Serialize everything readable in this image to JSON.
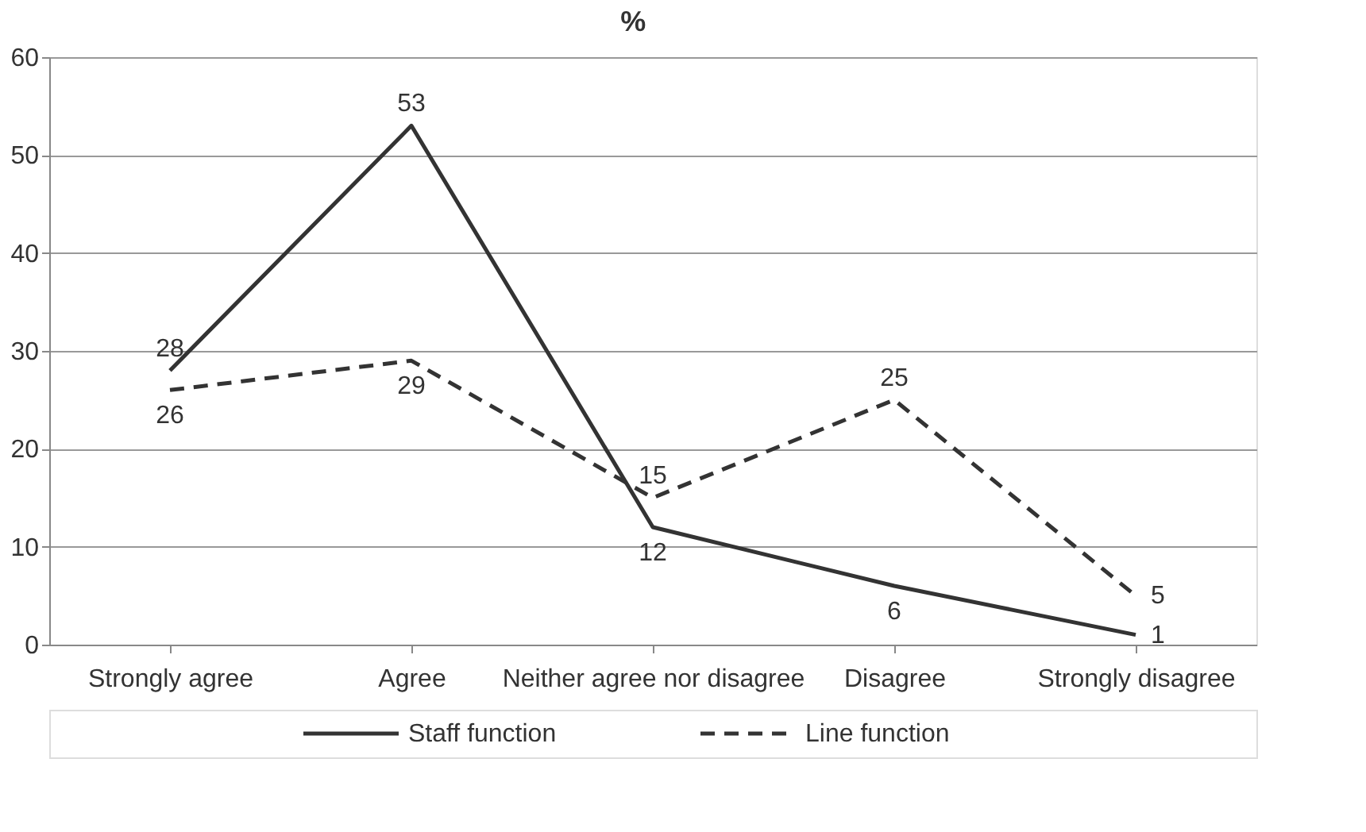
{
  "chart_data": {
    "type": "line",
    "title": "%",
    "categories": [
      "Strongly agree",
      "Agree",
      "Neither agree nor disagree",
      "Disagree",
      "Strongly disagree"
    ],
    "series": [
      {
        "name": "Staff function",
        "color": "#333333",
        "line_style": "solid",
        "values": [
          28,
          53,
          12,
          6,
          1
        ]
      },
      {
        "name": "Line function",
        "color": "#333333",
        "line_style": "dashed",
        "values": [
          26,
          29,
          15,
          25,
          5
        ]
      }
    ],
    "ylim": [
      0,
      60
    ],
    "yticks": [
      0,
      10,
      20,
      30,
      40,
      50,
      60
    ],
    "grid": "y",
    "legend": "bottom",
    "data_labels": true,
    "marker": "none"
  }
}
